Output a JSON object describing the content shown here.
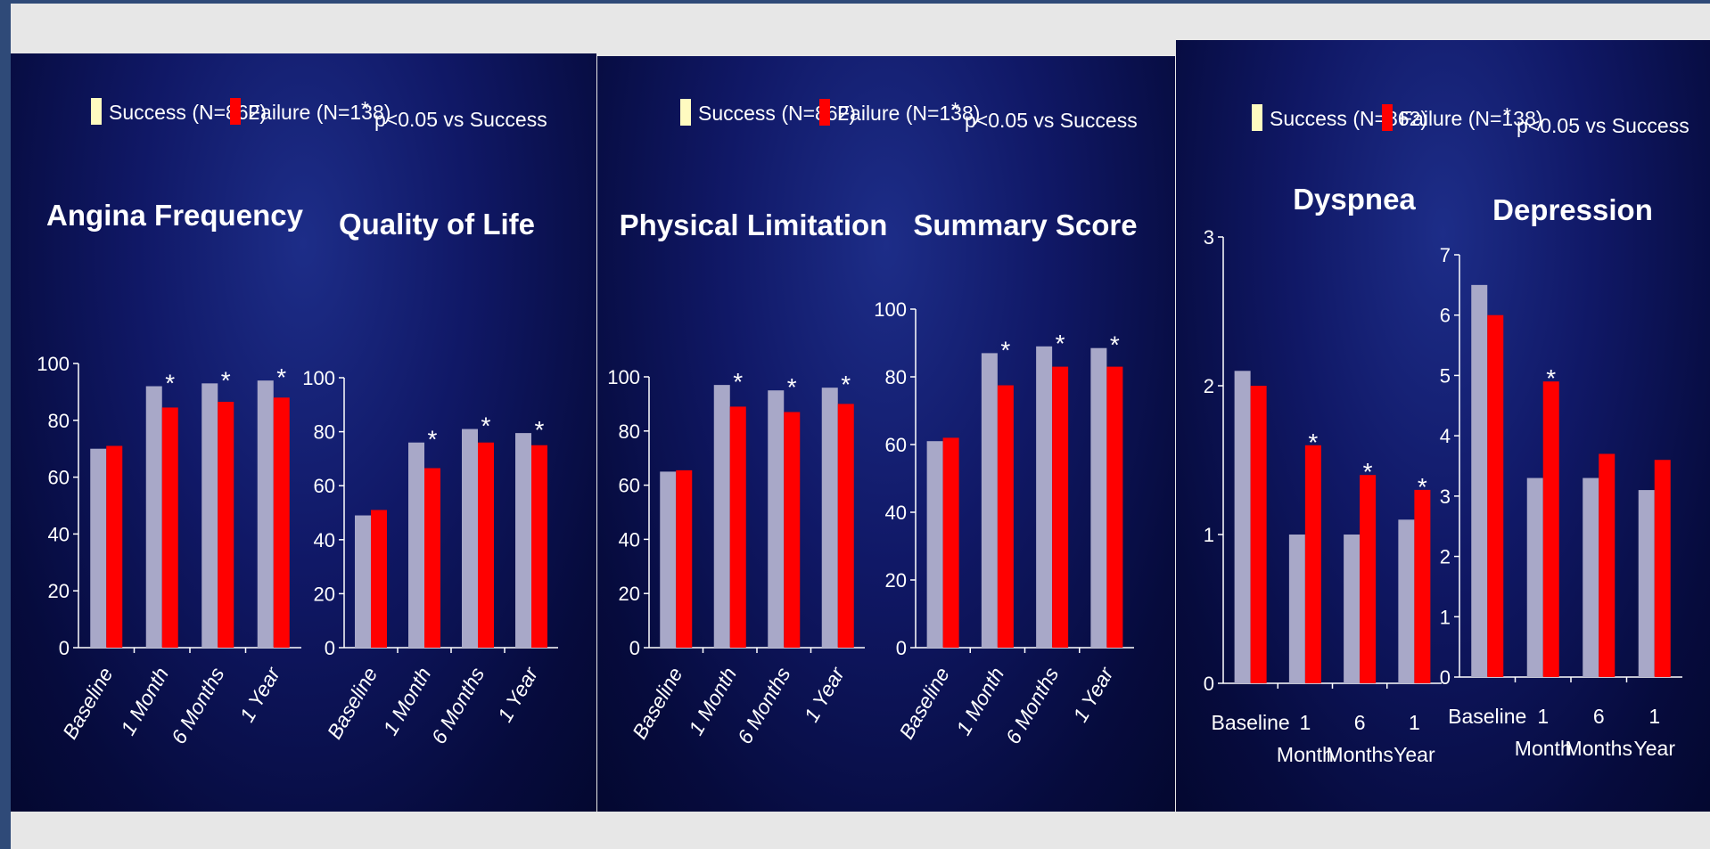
{
  "legend": {
    "success_label": "Success (N=862)",
    "failure_label": "Failure (N=138)",
    "star_symbol": "*",
    "significance_label": "p<0.05 vs Success"
  },
  "colors": {
    "success": "#a8a8c8",
    "failure": "#ff0000",
    "legend_success": "#fffbc0",
    "background": "#0a1150"
  },
  "chart_data": [
    {
      "type": "bar",
      "title": "Angina Frequency",
      "categories": [
        "Baseline",
        "1 Month",
        "6 Months",
        "1 Year"
      ],
      "series": [
        {
          "name": "Success (N=862)",
          "values": [
            70,
            92,
            93,
            94
          ]
        },
        {
          "name": "Failure (N=138)",
          "values": [
            71,
            84.5,
            86.5,
            88
          ]
        }
      ],
      "significant": [
        false,
        true,
        true,
        true
      ],
      "ylim": [
        0,
        100
      ],
      "yticks": [
        0,
        20,
        40,
        60,
        80,
        100
      ],
      "grid": false
    },
    {
      "type": "bar",
      "title": "Quality of Life",
      "categories": [
        "Baseline",
        "1 Month",
        "6 Months",
        "1 Year"
      ],
      "series": [
        {
          "name": "Success (N=862)",
          "values": [
            49,
            76,
            81,
            79.5
          ]
        },
        {
          "name": "Failure (N=138)",
          "values": [
            51,
            66.5,
            76,
            75
          ]
        }
      ],
      "significant": [
        false,
        true,
        true,
        true
      ],
      "ylim": [
        0,
        100
      ],
      "yticks": [
        0,
        20,
        40,
        60,
        80,
        100
      ],
      "grid": false
    },
    {
      "type": "bar",
      "title": "Physical Limitation",
      "categories": [
        "Baseline",
        "1 Month",
        "6 Months",
        "1 Year"
      ],
      "series": [
        {
          "name": "Success (N=862)",
          "values": [
            65,
            97,
            95,
            96
          ]
        },
        {
          "name": "Failure (N=138)",
          "values": [
            65.5,
            89,
            87,
            90
          ]
        }
      ],
      "significant": [
        false,
        true,
        true,
        true
      ],
      "ylim": [
        0,
        100
      ],
      "yticks": [
        0,
        20,
        40,
        60,
        80,
        100
      ],
      "grid": false
    },
    {
      "type": "bar",
      "title": "Summary Score",
      "categories": [
        "Baseline",
        "1 Month",
        "6 Months",
        "1 Year"
      ],
      "series": [
        {
          "name": "Success (N=862)",
          "values": [
            61,
            87,
            89,
            88.5
          ]
        },
        {
          "name": "Failure (N=138)",
          "values": [
            62,
            77.5,
            83,
            83
          ]
        }
      ],
      "significant": [
        false,
        true,
        true,
        true
      ],
      "ylim": [
        0,
        100
      ],
      "yticks": [
        0,
        20,
        40,
        60,
        80,
        100
      ],
      "grid": false
    },
    {
      "type": "bar",
      "title": "Dyspnea",
      "categories": [
        "Baseline",
        "1 Month",
        "6 Months",
        "1 Year"
      ],
      "series": [
        {
          "name": "Success (N=862)",
          "values": [
            2.1,
            1.0,
            1.0,
            1.1
          ]
        },
        {
          "name": "Failure (N=138)",
          "values": [
            2.0,
            1.6,
            1.4,
            1.3
          ]
        }
      ],
      "significant": [
        false,
        true,
        true,
        true
      ],
      "ylim": [
        0,
        3
      ],
      "yticks": [
        0,
        1,
        2,
        3
      ],
      "grid": false
    },
    {
      "type": "bar",
      "title": "Depression",
      "categories": [
        "Baseline",
        "1 Month",
        "6 Months",
        "1 Year"
      ],
      "series": [
        {
          "name": "Success (N=862)",
          "values": [
            6.5,
            3.3,
            3.3,
            3.1
          ]
        },
        {
          "name": "Failure (N=138)",
          "values": [
            6.0,
            4.9,
            3.7,
            3.6
          ]
        }
      ],
      "significant": [
        false,
        true,
        false,
        false
      ],
      "ylim": [
        0,
        7
      ],
      "yticks": [
        0,
        1,
        2,
        3,
        4,
        5,
        6,
        7
      ],
      "grid": false
    }
  ]
}
